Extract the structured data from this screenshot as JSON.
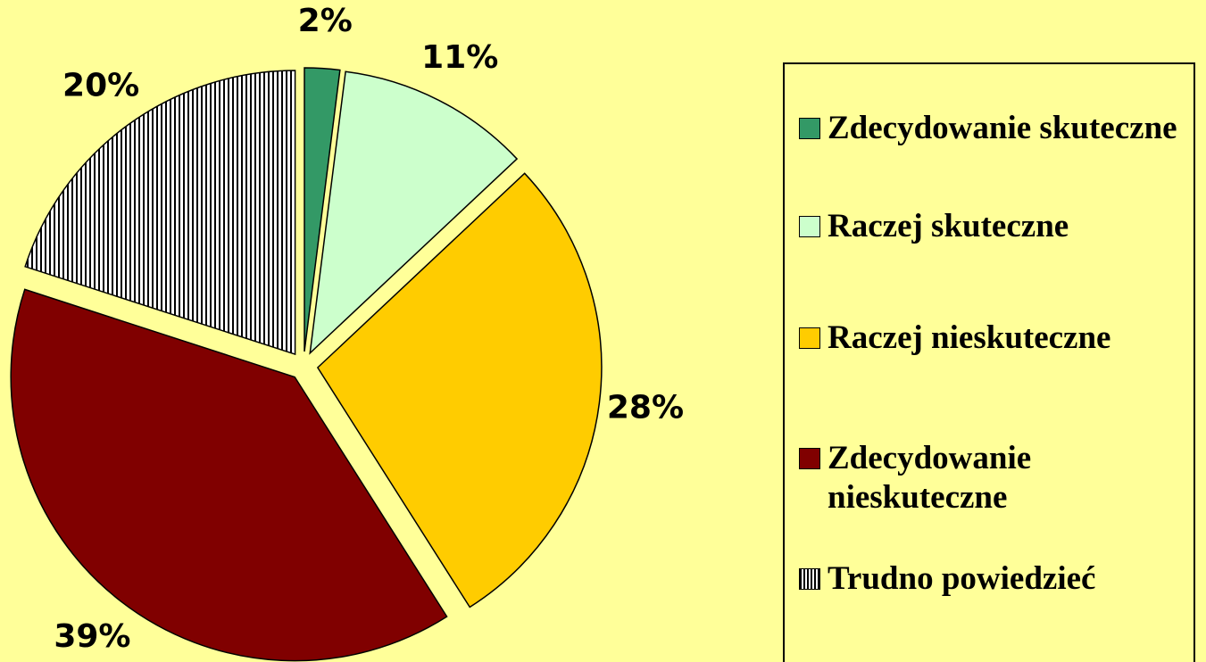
{
  "chart_data": {
    "type": "pie",
    "categories": [
      "Zdecydowanie skuteczne",
      "Raczej skuteczne",
      "Raczej nieskuteczne",
      "Zdecydowanie nieskuteczne",
      "Trudno powiedzieć"
    ],
    "values": [
      2,
      11,
      28,
      39,
      20
    ],
    "value_labels": [
      "2%",
      "11%",
      "28%",
      "39%",
      "20%"
    ],
    "colors": [
      "#339966",
      "#ccffcc",
      "#ffcc00",
      "#800000",
      "#ffffff"
    ],
    "patterns": [
      null,
      null,
      null,
      null,
      "vertical-lines"
    ],
    "legend": "right"
  }
}
